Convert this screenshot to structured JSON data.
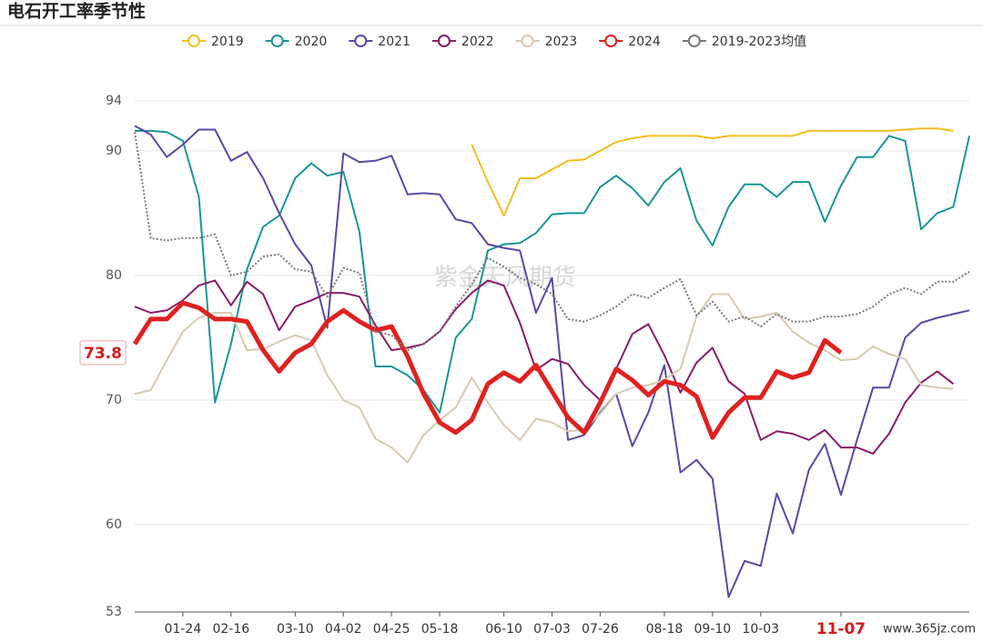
{
  "chart_data": {
    "type": "line",
    "title": "电石开工率季节性",
    "watermark": "紫金天风期货",
    "site": "www.365jz.com",
    "categories": [
      null,
      null,
      null,
      "01-24",
      null,
      null,
      "02-16",
      null,
      null,
      null,
      "03-10",
      null,
      null,
      "04-02",
      null,
      null,
      "04-25",
      null,
      null,
      "05-18",
      null,
      null,
      null,
      "06-10",
      null,
      null,
      "07-03",
      null,
      null,
      "07-26",
      null,
      null,
      null,
      "08-18",
      null,
      null,
      "09-10",
      null,
      null,
      "10-03",
      null,
      null,
      null,
      null,
      "11-07",
      null,
      null,
      null,
      null,
      null,
      null,
      null,
      null
    ],
    "ylim": [
      53,
      94
    ],
    "yticks": [
      53,
      60,
      70,
      80,
      90,
      94
    ],
    "grid": true,
    "legend": "top",
    "series": [
      {
        "name": "2019",
        "color": "#f2bf1c",
        "values": [
          null,
          null,
          null,
          null,
          null,
          null,
          null,
          null,
          null,
          null,
          null,
          null,
          null,
          null,
          null,
          null,
          null,
          null,
          null,
          null,
          null,
          90.5,
          87.5,
          84.8,
          87.8,
          87.8,
          88.5,
          89.2,
          89.3,
          90.0,
          90.7,
          91.0,
          91.2,
          91.2,
          91.2,
          91.2,
          91.0,
          91.2,
          91.2,
          91.2,
          91.2,
          91.2,
          91.6,
          91.6,
          91.6,
          91.6,
          91.6,
          91.6,
          91.7,
          91.8,
          91.8,
          91.6,
          null
        ]
      },
      {
        "name": "2020",
        "color": "#1b9595",
        "values": [
          91.6,
          91.6,
          91.5,
          90.8,
          86.3,
          69.8,
          74.5,
          80.5,
          83.9,
          84.8,
          87.8,
          89.0,
          88.0,
          88.3,
          83.5,
          72.7,
          72.7,
          72.0,
          70.8,
          69.0,
          75.0,
          76.5,
          82.0,
          82.5,
          82.6,
          83.4,
          84.9,
          85.0,
          85.0,
          87.1,
          88.0,
          87.0,
          85.6,
          87.5,
          88.6,
          84.4,
          82.4,
          85.5,
          87.3,
          87.3,
          86.3,
          87.5,
          87.5,
          84.3,
          87.2,
          89.5,
          89.5,
          91.2,
          90.8,
          83.7,
          85.0,
          85.5,
          91.2
        ]
      },
      {
        "name": "2021",
        "color": "#5b47a6",
        "values": [
          92.0,
          91.3,
          89.5,
          90.5,
          91.7,
          91.7,
          89.2,
          89.9,
          87.8,
          85.0,
          82.5,
          80.8,
          75.8,
          89.8,
          89.1,
          89.2,
          89.6,
          86.5,
          86.6,
          86.5,
          84.5,
          84.2,
          82.5,
          82.2,
          82.0,
          77.0,
          79.8,
          66.8,
          67.2,
          69.0,
          70.5,
          66.3,
          69.0,
          72.8,
          64.2,
          65.2,
          63.7,
          54.2,
          57.1,
          56.7,
          62.5,
          59.3,
          64.4,
          66.5,
          62.4,
          66.8,
          71.0,
          71.0,
          75.0,
          76.2,
          76.6,
          76.9,
          77.2
        ]
      },
      {
        "name": "2022",
        "color": "#8a1c68",
        "values": [
          77.5,
          77.0,
          77.2,
          78.0,
          79.2,
          79.6,
          77.6,
          79.5,
          78.5,
          75.6,
          77.5,
          78.0,
          78.6,
          78.6,
          78.3,
          76.0,
          74.0,
          74.2,
          74.5,
          75.5,
          77.3,
          78.6,
          79.6,
          79.2,
          76.2,
          72.4,
          73.3,
          72.9,
          71.2,
          70.0,
          72.5,
          75.3,
          76.1,
          73.6,
          70.6,
          73.0,
          74.2,
          71.5,
          70.5,
          66.8,
          67.5,
          67.3,
          66.8,
          67.6,
          66.2,
          66.2,
          65.7,
          67.3,
          69.8,
          71.4,
          72.3,
          71.3,
          null
        ]
      },
      {
        "name": "2023",
        "color": "#d6cab3",
        "values": [
          70.5,
          70.8,
          73.2,
          75.5,
          76.6,
          77.0,
          77.0,
          74.0,
          74.1,
          74.7,
          75.2,
          74.8,
          72.0,
          70.0,
          69.4,
          66.9,
          66.2,
          65.0,
          67.2,
          68.4,
          69.4,
          71.8,
          69.8,
          68.0,
          66.8,
          68.5,
          68.2,
          67.5,
          67.6,
          68.9,
          70.5,
          71.0,
          71.2,
          71.6,
          72.5,
          76.7,
          78.5,
          78.5,
          76.5,
          76.7,
          77.0,
          75.5,
          74.6,
          74.0,
          73.2,
          73.3,
          74.3,
          73.7,
          73.3,
          71.2,
          71.0,
          70.9,
          null
        ]
      },
      {
        "name": "2024",
        "color": "#e0211f",
        "bold": true,
        "values": [
          74.5,
          76.5,
          76.5,
          77.8,
          77.4,
          76.5,
          76.5,
          76.3,
          74.0,
          72.3,
          73.8,
          74.5,
          76.3,
          77.2,
          76.3,
          75.6,
          75.9,
          73.5,
          70.5,
          68.2,
          67.4,
          68.4,
          71.3,
          72.2,
          71.5,
          72.8,
          70.7,
          68.6,
          67.4,
          69.8,
          72.5,
          71.6,
          70.4,
          71.5,
          71.2,
          70.3,
          67.0,
          69.0,
          70.2,
          70.2,
          72.3,
          71.8,
          72.2,
          74.8,
          73.8,
          null,
          null,
          null,
          null,
          null,
          null,
          null,
          null
        ]
      },
      {
        "name": "2019-2023均值",
        "color": "#7a7a7a",
        "line_style": "dotted",
        "values": [
          91.5,
          83.0,
          82.8,
          83.0,
          83.0,
          83.3,
          80.0,
          80.3,
          81.5,
          81.7,
          80.5,
          80.3,
          78.3,
          80.6,
          80.2,
          75.5,
          75.2,
          74.0,
          74.5,
          75.5,
          77.5,
          79.3,
          81.4,
          80.7,
          79.8,
          79.3,
          78.5,
          76.5,
          76.3,
          76.8,
          77.5,
          78.5,
          78.2,
          79.0,
          79.7,
          76.8,
          77.9,
          76.3,
          76.7,
          75.9,
          76.9,
          76.3,
          76.3,
          76.7,
          76.7,
          76.9,
          77.5,
          78.5,
          79.0,
          78.5,
          79.5,
          79.5,
          80.3
        ]
      }
    ]
  }
}
